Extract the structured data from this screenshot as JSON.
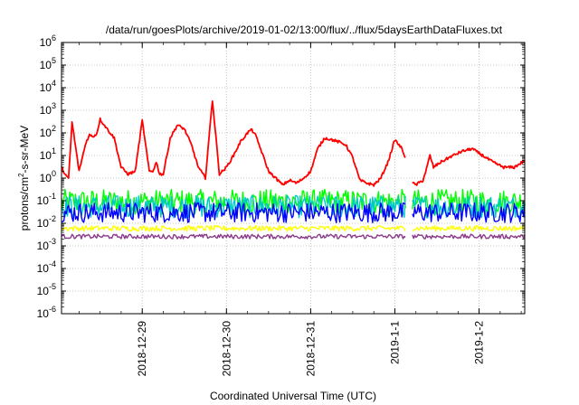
{
  "chart_data": {
    "type": "line",
    "title": "/data/run/goesPlots/archive/2019-01-02/13:00/flux/../flux/5daysEarthDataFluxes.txt",
    "xlabel": "Coordinated Universal Time (UTC)",
    "ylabel_parts": {
      "base": "protons/cm",
      "sup": "2",
      "rest": "-s-sr-MeV"
    },
    "y_scale": "log",
    "ylim": [
      1e-06,
      1000000.0
    ],
    "y_ticks": [
      {
        "value": 1e-06,
        "base": "10",
        "exp": "-6"
      },
      {
        "value": 1e-05,
        "base": "10",
        "exp": "-5"
      },
      {
        "value": 0.0001,
        "base": "10",
        "exp": "-4"
      },
      {
        "value": 0.001,
        "base": "10",
        "exp": "-3"
      },
      {
        "value": 0.01,
        "base": "10",
        "exp": "-2"
      },
      {
        "value": 0.1,
        "base": "10",
        "exp": "-1"
      },
      {
        "value": 1,
        "base": "10",
        "exp": "0"
      },
      {
        "value": 10.0,
        "base": "10",
        "exp": "1"
      },
      {
        "value": 100.0,
        "base": "10",
        "exp": "2"
      },
      {
        "value": 1000.0,
        "base": "10",
        "exp": "3"
      },
      {
        "value": 10000.0,
        "base": "10",
        "exp": "4"
      },
      {
        "value": 100000.0,
        "base": "10",
        "exp": "5"
      },
      {
        "value": 1000000.0,
        "base": "10",
        "exp": "6"
      }
    ],
    "xlim": [
      "2018-12-28T01:00",
      "2019-01-02T13:00"
    ],
    "x_ticks": [
      {
        "value": "2018-12-29T00:00",
        "label": "2018-12-29"
      },
      {
        "value": "2018-12-30T00:00",
        "label": "2018-12-30"
      },
      {
        "value": "2018-12-31T00:00",
        "label": "2018-12-31"
      },
      {
        "value": "2019-01-01T00:00",
        "label": "2019-1-1"
      },
      {
        "value": "2019-01-02T00:00",
        "label": "2019-1-2"
      }
    ],
    "grid": true,
    "legend": "none",
    "gaps": [
      [
        "2019-01-01T03:00",
        "2019-01-01T05:00"
      ]
    ],
    "series": [
      {
        "color": "#ff0000",
        "style": "smooth",
        "x": [
          "2018-12-28T01:00",
          "2018-12-28T02:00",
          "2018-12-28T03:00",
          "2018-12-28T04:00",
          "2018-12-28T06:00",
          "2018-12-28T08:00",
          "2018-12-28T09:00",
          "2018-12-28T10:00",
          "2018-12-28T11:00",
          "2018-12-28T12:00",
          "2018-12-28T14:00",
          "2018-12-28T16:00",
          "2018-12-28T18:00",
          "2018-12-28T20:00",
          "2018-12-28T22:00",
          "2018-12-29T00:00",
          "2018-12-29T02:00",
          "2018-12-29T03:00",
          "2018-12-29T04:00",
          "2018-12-29T05:00",
          "2018-12-29T06:00",
          "2018-12-29T08:00",
          "2018-12-29T10:00",
          "2018-12-29T12:00",
          "2018-12-29T14:00",
          "2018-12-29T16:00",
          "2018-12-29T18:00",
          "2018-12-29T20:00",
          "2018-12-29T22:00",
          "2018-12-30T00:00",
          "2018-12-30T02:00",
          "2018-12-30T04:00",
          "2018-12-30T06:00",
          "2018-12-30T07:00",
          "2018-12-30T08:00",
          "2018-12-30T09:00",
          "2018-12-30T10:00",
          "2018-12-30T12:00",
          "2018-12-30T14:00",
          "2018-12-30T16:00",
          "2018-12-30T18:00",
          "2018-12-30T20:00",
          "2018-12-30T22:00",
          "2018-12-31T00:00",
          "2018-12-31T02:00",
          "2018-12-31T04:00",
          "2018-12-31T06:00",
          "2018-12-31T08:00",
          "2018-12-31T10:00",
          "2018-12-31T12:00",
          "2018-12-31T14:00",
          "2018-12-31T16:00",
          "2018-12-31T18:00",
          "2018-12-31T20:00",
          "2018-12-31T22:00",
          "2019-01-01T00:00",
          "2019-01-01T02:00",
          "2019-01-01T03:00"
        ],
        "y": [
          3,
          1.5,
          0.9,
          300,
          2,
          40,
          80,
          70,
          90,
          400,
          150,
          60,
          3,
          1.5,
          2,
          350,
          2,
          2,
          5,
          1.5,
          1.5,
          60,
          220,
          150,
          30,
          3,
          1,
          2800,
          1.5,
          3,
          10,
          40,
          100,
          140,
          100,
          40,
          15,
          2,
          1,
          0.5,
          0.8,
          0.6,
          1,
          2,
          20,
          60,
          50,
          40,
          30,
          8,
          0.8,
          0.6,
          0.5,
          1,
          5,
          50,
          20,
          8
        ]
      },
      {
        "color": "#ff0000",
        "style": "smooth",
        "x": [
          "2019-01-01T05:00",
          "2019-01-01T06:00",
          "2019-01-01T08:00",
          "2019-01-01T09:00",
          "2019-01-01T10:00",
          "2019-01-01T11:00",
          "2019-01-01T13:00",
          "2019-01-01T16:00",
          "2019-01-01T19:00",
          "2019-01-01T22:00",
          "2019-01-02T01:00",
          "2019-01-02T04:00",
          "2019-01-02T07:00",
          "2019-01-02T10:00",
          "2019-01-02T13:00"
        ],
        "y": [
          0.6,
          0.5,
          0.8,
          2.5,
          10,
          3,
          5,
          9,
          15,
          20,
          10,
          5,
          3,
          3,
          6
        ]
      },
      {
        "color": "#00ff00",
        "style": "noise",
        "x": [
          "2018-12-28T01:00",
          "2019-01-02T13:00"
        ],
        "y": [
          0.09,
          0.09
        ],
        "spread": 0.55
      },
      {
        "color": "#00c8c8",
        "style": "noise",
        "x": [
          "2018-12-28T01:00",
          "2019-01-02T13:00"
        ],
        "y": [
          0.055,
          0.055
        ],
        "spread": 0.5
      },
      {
        "color": "#0000ff",
        "style": "noise",
        "x": [
          "2018-12-28T01:00",
          "2019-01-02T13:00"
        ],
        "y": [
          0.03,
          0.03
        ],
        "spread": 0.45
      },
      {
        "color": "#ffff00",
        "style": "noise",
        "x": [
          "2018-12-28T01:00",
          "2019-01-02T13:00"
        ],
        "y": [
          0.006,
          0.006
        ],
        "spread": 0.12
      },
      {
        "color": "#8b3a8b",
        "style": "noise",
        "x": [
          "2018-12-28T01:00",
          "2019-01-02T13:00"
        ],
        "y": [
          0.0026,
          0.0026
        ],
        "spread": 0.1
      }
    ]
  }
}
